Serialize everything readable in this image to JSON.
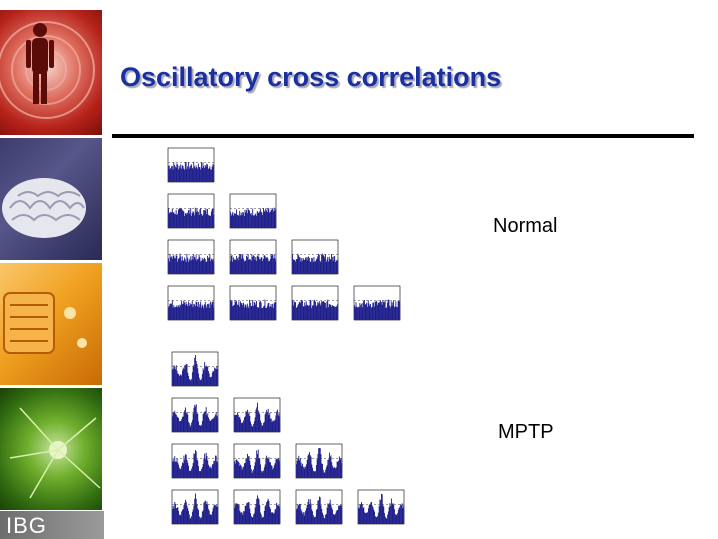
{
  "slide": {
    "title": "Oscillatory cross correlations",
    "logo_text": "IBG",
    "colors": {
      "title": "#1a2fa0",
      "histogram": "#1f1f8c",
      "rule": "#000000"
    }
  },
  "side_images": [
    {
      "name": "human-figure-image"
    },
    {
      "name": "brain-image"
    },
    {
      "name": "circuit-board-image"
    },
    {
      "name": "neuron-image"
    }
  ],
  "groups": [
    {
      "label": "Normal",
      "pattern": "flat",
      "rows": [
        1,
        2,
        3,
        4
      ]
    },
    {
      "label": "MPTP",
      "pattern": "oscillatory",
      "rows": [
        1,
        2,
        3,
        4
      ]
    }
  ]
}
